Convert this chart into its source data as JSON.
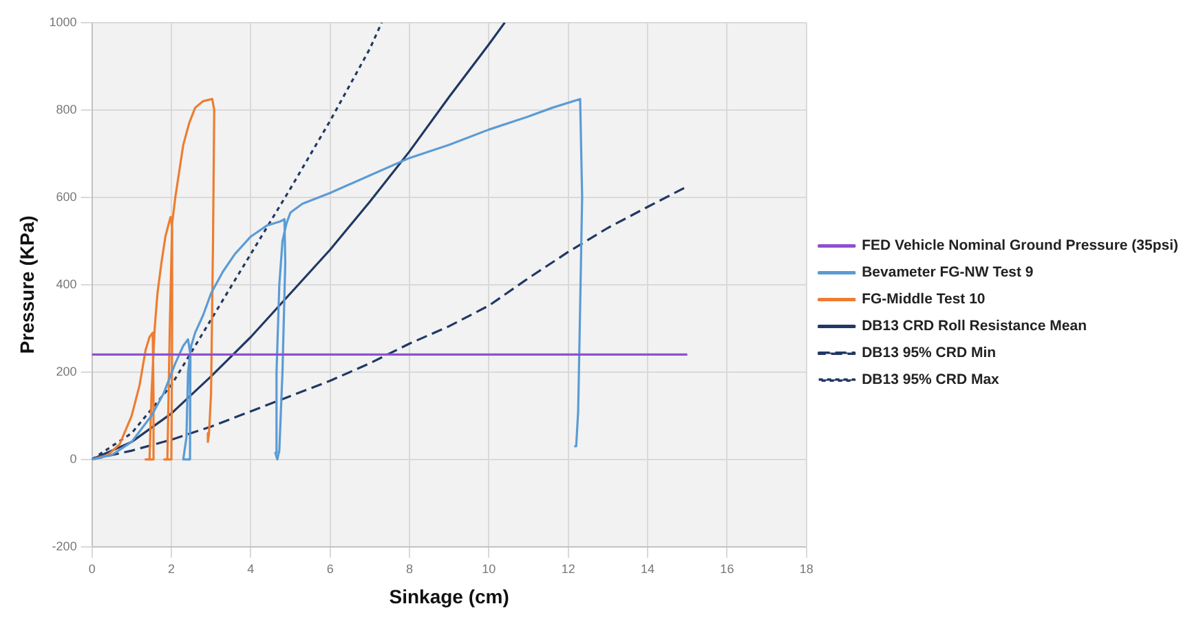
{
  "chart_data": {
    "type": "line",
    "xlabel": "Sinkage (cm)",
    "ylabel": "Pressure (KPa)",
    "xlim": [
      0,
      18
    ],
    "ylim": [
      -200,
      1000
    ],
    "xticks": [
      0,
      2,
      4,
      6,
      8,
      10,
      12,
      14,
      16,
      18
    ],
    "yticks": [
      -200,
      0,
      200,
      400,
      600,
      800,
      1000
    ],
    "grid": true,
    "legend": "right",
    "marker": "none",
    "line_style": "solid",
    "series": [
      {
        "name": "FED Vehicle Nominal Ground Pressure (35psi)",
        "color": "#8e4fd0",
        "x": [
          0,
          15
        ],
        "values": [
          240,
          240
        ]
      },
      {
        "name": "Bevameter FG-NW Test 9",
        "color": "#5b9bd5",
        "x": [
          0,
          0.5,
          1.0,
          1.5,
          1.8,
          2.1,
          2.3,
          2.42,
          2.48,
          2.47,
          2.3,
          2.38,
          2.42,
          2.5,
          2.6,
          2.8,
          3.0,
          3.3,
          3.6,
          4.0,
          4.4,
          4.75,
          4.85,
          4.87,
          4.8,
          4.72,
          4.67,
          4.62,
          4.65,
          4.72,
          4.8,
          4.9,
          5.0,
          5.3,
          6,
          7,
          8,
          9,
          10,
          11,
          11.6,
          12.3,
          12.35,
          12.3,
          12.25,
          12.2,
          12.15
        ],
        "values": [
          0,
          10,
          40,
          100,
          150,
          220,
          260,
          275,
          240,
          0,
          0,
          50,
          200,
          260,
          290,
          330,
          380,
          430,
          470,
          510,
          535,
          545,
          550,
          450,
          200,
          20,
          0,
          15,
          200,
          400,
          500,
          540,
          565,
          585,
          610,
          650,
          690,
          720,
          755,
          785,
          805,
          825,
          600,
          350,
          110,
          30,
          30
        ]
      },
      {
        "name": "FG-Middle Test 10",
        "color": "#ed7d31",
        "x": [
          0,
          0.4,
          0.7,
          1.0,
          1.2,
          1.35,
          1.45,
          1.53,
          1.55,
          1.55,
          1.35,
          1.45,
          1.5,
          1.58,
          1.65,
          1.75,
          1.85,
          1.92,
          1.98,
          2.02,
          2.02,
          2.0,
          1.82,
          1.9,
          1.96,
          2.02,
          2.1,
          2.2,
          2.3,
          2.45,
          2.6,
          2.8,
          3.03,
          3.08,
          3.05,
          3.0,
          2.95,
          2.92
        ],
        "values": [
          0,
          10,
          35,
          100,
          170,
          250,
          280,
          290,
          150,
          0,
          0,
          0,
          150,
          300,
          380,
          450,
          510,
          535,
          555,
          530,
          300,
          0,
          0,
          0,
          300,
          540,
          600,
          660,
          720,
          770,
          805,
          820,
          825,
          800,
          500,
          150,
          60,
          40
        ]
      },
      {
        "name": "DB13 CRD Roll Resistance Mean",
        "color": "#203864",
        "x": [
          0,
          1,
          2,
          3,
          4,
          5,
          6,
          7,
          8,
          9,
          10,
          10.4
        ],
        "values": [
          0,
          40,
          105,
          190,
          280,
          380,
          480,
          590,
          705,
          830,
          950,
          1000
        ]
      },
      {
        "name": "DB13 95% CRD Min",
        "color": "#203864",
        "line_style": "dashed",
        "x": [
          0,
          1,
          2,
          3,
          4,
          5,
          6,
          7,
          8,
          9,
          10,
          11,
          12,
          13,
          14,
          15
        ],
        "values": [
          0,
          20,
          45,
          75,
          110,
          145,
          180,
          220,
          265,
          305,
          352,
          415,
          475,
          530,
          578,
          625
        ]
      },
      {
        "name": "DB13 95% CRD Max",
        "color": "#203864",
        "line_style": "dotted",
        "x": [
          0,
          1,
          2,
          3,
          4,
          5,
          6,
          7,
          7.3
        ],
        "values": [
          0,
          60,
          170,
          320,
          470,
          620,
          775,
          940,
          1000
        ]
      }
    ]
  }
}
